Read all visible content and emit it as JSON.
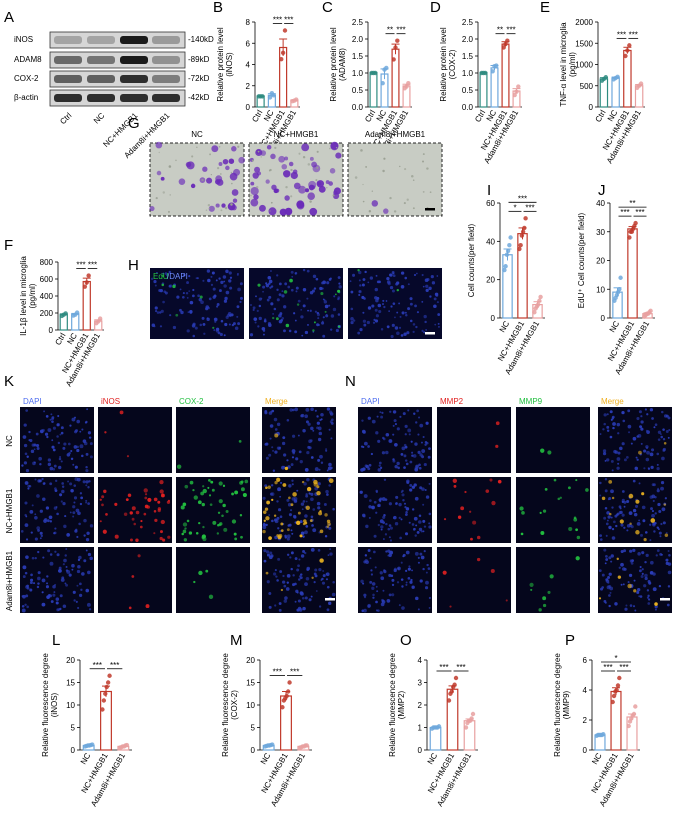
{
  "chart_data": [
    {
      "type": "bar",
      "panel": "B",
      "y_label": [
        "Relative protein level",
        "(iNOS)"
      ],
      "categories": [
        "Ctrl",
        "NC",
        "NC+HMGB1",
        "Adam8i+HMGB1"
      ],
      "colors": [
        "#2e8b80",
        "#6fa8dc",
        "#c0392b",
        "#e8a0a0"
      ],
      "values": [
        1,
        1.1,
        5.6,
        0.62
      ],
      "errors": [
        0.05,
        0.15,
        0.8,
        0.05
      ],
      "points": [
        [
          1,
          1,
          1
        ],
        [
          0.9,
          1.3,
          1.1
        ],
        [
          4.5,
          5.1,
          7.2
        ],
        [
          0.55,
          0.6,
          0.7
        ]
      ],
      "ylim": [
        0,
        8
      ],
      "yticks": [
        0,
        2,
        4,
        6,
        8
      ],
      "sig": [
        {
          "pair": [
            1,
            2
          ],
          "label": "***"
        },
        {
          "pair": [
            2,
            3
          ],
          "label": "***"
        }
      ]
    },
    {
      "type": "bar",
      "panel": "C",
      "y_label": [
        "Relative protein level",
        "(ADAM8)"
      ],
      "categories": [
        "Ctrl",
        "NC",
        "NC+HMGB1",
        "Adam8i+HMGB1"
      ],
      "colors": [
        "#2e8b80",
        "#6fa8dc",
        "#c0392b",
        "#e8a0a0"
      ],
      "values": [
        1,
        0.97,
        1.7,
        0.62
      ],
      "errors": [
        0.02,
        0.15,
        0.15,
        0.05
      ],
      "points": [
        [
          1,
          1,
          1
        ],
        [
          0.7,
          1.1,
          1.15
        ],
        [
          1.4,
          1.75,
          1.95
        ],
        [
          0.55,
          0.6,
          0.7
        ]
      ],
      "ylim": [
        0,
        2.5
      ],
      "yticks": [
        {
          "value": 0,
          "label": "0.0"
        },
        {
          "value": 0.5,
          "label": "0.5"
        },
        {
          "value": 1,
          "label": "1.0"
        },
        {
          "value": 1.5,
          "label": "1.5"
        },
        {
          "value": 2,
          "label": "2.0"
        },
        {
          "value": 2.5,
          "label": "2.5"
        }
      ],
      "sig": [
        {
          "pair": [
            1,
            2
          ],
          "label": "**"
        },
        {
          "pair": [
            2,
            3
          ],
          "label": "***"
        }
      ]
    },
    {
      "type": "bar",
      "panel": "D",
      "y_label": [
        "Relative protein level",
        "(COX-2)"
      ],
      "categories": [
        "Ctrl",
        "NC",
        "NC+HMGB1",
        "Adam8i+HMGB1"
      ],
      "colors": [
        "#2e8b80",
        "#6fa8dc",
        "#c0392b",
        "#e8a0a0"
      ],
      "values": [
        1,
        1.15,
        1.85,
        0.47
      ],
      "errors": [
        0.02,
        0.07,
        0.07,
        0.07
      ],
      "points": [
        [
          1,
          1,
          1
        ],
        [
          1.05,
          1.2,
          1.22
        ],
        [
          1.75,
          1.85,
          1.95
        ],
        [
          0.35,
          0.45,
          0.6
        ]
      ],
      "ylim": [
        0,
        2.5
      ],
      "yticks": [
        {
          "value": 0,
          "label": "0.0"
        },
        {
          "value": 0.5,
          "label": "0.5"
        },
        {
          "value": 1,
          "label": "1.0"
        },
        {
          "value": 1.5,
          "label": "1.5"
        },
        {
          "value": 2,
          "label": "2.0"
        },
        {
          "value": 2.5,
          "label": "2.5"
        }
      ],
      "sig": [
        {
          "pair": [
            1,
            2
          ],
          "label": "**"
        },
        {
          "pair": [
            2,
            3
          ],
          "label": "***"
        }
      ]
    },
    {
      "type": "bar",
      "panel": "E",
      "y_label": [
        "TNF-α level in microglia",
        "(pg/ml)"
      ],
      "categories": [
        "Ctrl",
        "NC",
        "NC+HMGB1",
        "Adam8i+HMGB1"
      ],
      "colors": [
        "#2e8b80",
        "#6fa8dc",
        "#c0392b",
        "#e8a0a0"
      ],
      "values": [
        660,
        680,
        1330,
        500
      ],
      "errors": [
        30,
        25,
        75,
        30
      ],
      "points": [
        [
          620,
          660,
          700
        ],
        [
          650,
          680,
          710
        ],
        [
          1200,
          1330,
          1450
        ],
        [
          450,
          500,
          550
        ]
      ],
      "ylim": [
        0,
        2000
      ],
      "yticks": [
        0,
        500,
        1000,
        1500,
        2000
      ],
      "sig": [
        {
          "pair": [
            1,
            2
          ],
          "label": "***"
        },
        {
          "pair": [
            2,
            3
          ],
          "label": "***"
        }
      ]
    },
    {
      "type": "bar",
      "panel": "F",
      "y_label": [
        "IL-1β level in microglia",
        "(pg/ml)"
      ],
      "categories": [
        "Ctrl",
        "NC",
        "NC+HMGB1",
        "Adam8i+HMGB1"
      ],
      "colors": [
        "#2e8b80",
        "#6fa8dc",
        "#c0392b",
        "#e8a0a0"
      ],
      "values": [
        180,
        185,
        570,
        105
      ],
      "errors": [
        10,
        10,
        40,
        15
      ],
      "points": [
        [
          165,
          180,
          195
        ],
        [
          170,
          180,
          205
        ],
        [
          510,
          560,
          640
        ],
        [
          80,
          100,
          135
        ]
      ],
      "ylim": [
        0,
        800
      ],
      "yticks": [
        0,
        200,
        400,
        600,
        800
      ],
      "sig": [
        {
          "pair": [
            1,
            2
          ],
          "label": "***"
        },
        {
          "pair": [
            2,
            3
          ],
          "label": "***"
        }
      ]
    },
    {
      "type": "bar",
      "panel": "I",
      "y_label": [
        "Cell counts(per field)"
      ],
      "categories": [
        "NC",
        "NC+HMGB1",
        "Adam8i+HMGB1"
      ],
      "colors": [
        "#6fa8dc",
        "#c0392b",
        "#e8a0a0"
      ],
      "values": [
        33,
        44,
        7
      ],
      "errors": [
        3,
        3,
        1.5
      ],
      "points": [
        [
          25,
          27,
          33,
          35,
          38,
          42
        ],
        [
          36,
          38,
          43,
          45,
          47,
          52
        ],
        [
          3,
          5,
          6,
          7,
          9,
          11
        ]
      ],
      "ylim": [
        0,
        60
      ],
      "yticks": [
        0,
        20,
        40,
        60
      ],
      "sig": [
        {
          "pair": [
            0,
            1
          ],
          "label": "*"
        },
        {
          "pair": [
            1,
            2
          ],
          "label": "***"
        },
        {
          "pair": [
            0,
            2
          ],
          "label": "***"
        }
      ]
    },
    {
      "type": "bar",
      "panel": "J",
      "y_label": [
        "EdU⁺ Cell counts(per field)"
      ],
      "categories": [
        "NC",
        "NC+HMGB1",
        "Adam8i+HMGB1"
      ],
      "colors": [
        "#6fa8dc",
        "#c0392b",
        "#e8a0a0"
      ],
      "values": [
        9,
        31,
        1.5
      ],
      "errors": [
        1.5,
        0.8,
        0.3
      ],
      "points": [
        [
          6,
          7,
          8,
          9,
          10,
          14
        ],
        [
          28,
          30,
          30,
          31,
          32,
          33
        ],
        [
          0.5,
          1,
          1.5,
          1.5,
          2,
          2.5
        ]
      ],
      "ylim": [
        0,
        40
      ],
      "yticks": [
        0,
        10,
        20,
        30,
        40
      ],
      "sig": [
        {
          "pair": [
            0,
            1
          ],
          "label": "***"
        },
        {
          "pair": [
            1,
            2
          ],
          "label": "***"
        },
        {
          "pair": [
            0,
            2
          ],
          "label": "**"
        }
      ]
    },
    {
      "type": "bar",
      "panel": "L",
      "y_label": [
        "Relative fluorescence degree",
        "(iNOS)"
      ],
      "categories": [
        "NC",
        "NC+HMGB1",
        "Adam8i+HMGB1"
      ],
      "colors": [
        "#6fa8dc",
        "#c0392b",
        "#e8a0a0"
      ],
      "values": [
        1,
        13,
        0.8
      ],
      "errors": [
        0.1,
        1.2,
        0.1
      ],
      "points": [
        [
          0.8,
          0.9,
          1,
          1,
          1.1,
          1.2
        ],
        [
          9,
          11,
          12.5,
          14,
          15,
          16.5
        ],
        [
          0.5,
          0.6,
          0.8,
          0.8,
          1,
          1.1
        ]
      ],
      "ylim": [
        0,
        20
      ],
      "yticks": [
        0,
        5,
        10,
        15,
        20
      ],
      "sig": [
        {
          "pair": [
            0,
            1
          ],
          "label": "***"
        },
        {
          "pair": [
            1,
            2
          ],
          "label": "***"
        }
      ]
    },
    {
      "type": "bar",
      "panel": "M",
      "y_label": [
        "Relative fluorescence degree",
        "(COX-2)"
      ],
      "categories": [
        "NC",
        "NC+HMGB1",
        "Adam8i+HMGB1"
      ],
      "colors": [
        "#6fa8dc",
        "#c0392b",
        "#e8a0a0"
      ],
      "values": [
        1,
        12,
        0.8
      ],
      "errors": [
        0.1,
        1,
        0.1
      ],
      "points": [
        [
          0.8,
          0.9,
          1,
          1,
          1.1,
          1.2
        ],
        [
          9.5,
          11,
          11.5,
          12,
          13,
          15
        ],
        [
          0.5,
          0.6,
          0.8,
          0.8,
          1,
          1
        ]
      ],
      "ylim": [
        0,
        20
      ],
      "yticks": [
        0,
        5,
        10,
        15,
        20
      ],
      "sig": [
        {
          "pair": [
            0,
            1
          ],
          "label": "***"
        },
        {
          "pair": [
            1,
            2
          ],
          "label": "***"
        }
      ]
    },
    {
      "type": "bar",
      "panel": "O",
      "y_label": [
        "Relative fluorescence degree",
        "(MMP2)"
      ],
      "categories": [
        "NC",
        "NC+HMGB1",
        "Adam8i+HMGB1"
      ],
      "colors": [
        "#6fa8dc",
        "#c0392b",
        "#e8a0a0"
      ],
      "values": [
        1,
        2.7,
        1.3
      ],
      "errors": [
        0.02,
        0.15,
        0.08
      ],
      "points": [
        [
          0.95,
          1,
          1,
          1,
          1,
          1.05
        ],
        [
          2.2,
          2.5,
          2.6,
          2.8,
          2.9,
          3.2
        ],
        [
          1,
          1.2,
          1.3,
          1.3,
          1.4,
          1.6
        ]
      ],
      "ylim": [
        0,
        4
      ],
      "yticks": [
        0,
        1,
        2,
        3,
        4
      ],
      "sig": [
        {
          "pair": [
            0,
            1
          ],
          "label": "***"
        },
        {
          "pair": [
            1,
            2
          ],
          "label": "***"
        }
      ]
    },
    {
      "type": "bar",
      "panel": "P",
      "y_label": [
        "Relative fluorescence degree",
        "(MMP9)"
      ],
      "categories": [
        "NC",
        "NC+HMGB1",
        "Adam8i+HMGB1"
      ],
      "colors": [
        "#6fa8dc",
        "#c0392b",
        "#e8a0a0"
      ],
      "values": [
        1,
        3.9,
        2.2
      ],
      "errors": [
        0.02,
        0.25,
        0.2
      ],
      "points": [
        [
          0.95,
          1,
          1,
          1,
          1,
          1.05
        ],
        [
          3.2,
          3.6,
          3.9,
          4,
          4.3,
          4.8
        ],
        [
          1.6,
          1.9,
          2.1,
          2.3,
          2.4,
          2.9
        ]
      ],
      "ylim": [
        0,
        6
      ],
      "yticks": [
        0,
        2,
        4,
        6
      ],
      "sig": [
        {
          "pair": [
            0,
            1
          ],
          "label": "***"
        },
        {
          "pair": [
            1,
            2
          ],
          "label": "***"
        },
        {
          "pair": [
            0,
            2
          ],
          "label": "*"
        }
      ]
    }
  ],
  "blot": {
    "panel": "A",
    "proteins": [
      "iNOS",
      "ADAM8",
      "COX-2",
      "β-actin"
    ],
    "sizes": [
      "-140kD",
      "-89kD",
      "-72kD",
      "-42kD"
    ],
    "lanes": [
      "Ctrl",
      "NC",
      "NC+HMGB1",
      "Adam8i+HMGB1"
    ]
  },
  "panel_g": {
    "panel": "G",
    "columns": [
      "NC",
      "NC+HMGB1",
      "Adam8i+HMGB1"
    ]
  },
  "panel_h": {
    "panel": "H",
    "stain": [
      "EdU",
      "/DAPI"
    ]
  },
  "panel_k": {
    "panel": "K",
    "columns": [
      "DAPI",
      "iNOS",
      "COX-2",
      "Merge"
    ],
    "rows": [
      "NC",
      "NC+HMGB1",
      "Adam8i+HMGB1"
    ]
  },
  "panel_n": {
    "panel": "N",
    "columns": [
      "DAPI",
      "MMP2",
      "MMP9",
      "Merge"
    ]
  }
}
